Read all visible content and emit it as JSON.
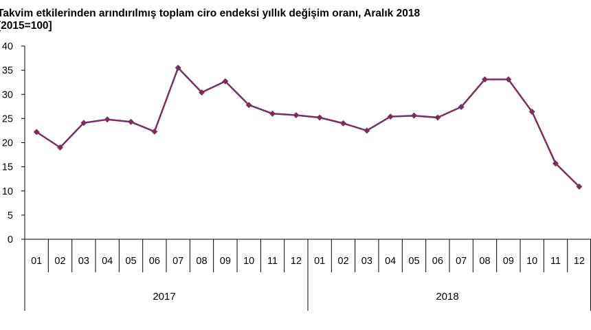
{
  "chart_data": {
    "type": "line",
    "title": "Takvim etkilerinden arındırılmış toplam ciro endeksi yıllık değişim oranı, Aralık 2018",
    "subtitle": "[2015=100]",
    "categories": [
      "01",
      "02",
      "03",
      "04",
      "05",
      "06",
      "07",
      "08",
      "09",
      "10",
      "11",
      "12",
      "01",
      "02",
      "03",
      "04",
      "05",
      "06",
      "07",
      "08",
      "09",
      "10",
      "11",
      "12"
    ],
    "years": [
      {
        "label": "2017",
        "start": 0,
        "end": 11
      },
      {
        "label": "2018",
        "start": 12,
        "end": 23
      }
    ],
    "series": [
      {
        "name": "Yıllık değişim oranı",
        "color": "#7b2d5c",
        "values": [
          22.2,
          19.0,
          24.1,
          24.8,
          24.3,
          22.3,
          35.5,
          30.4,
          32.7,
          27.8,
          26.0,
          25.7,
          25.2,
          24.0,
          22.5,
          25.4,
          25.6,
          25.2,
          27.4,
          33.1,
          33.1,
          26.4,
          15.7,
          10.9
        ]
      }
    ],
    "ylim": [
      0,
      40
    ],
    "yticks": [
      "0",
      "5",
      "10",
      "15",
      "20",
      "25",
      "30",
      "35",
      "40"
    ],
    "xlabel": "",
    "ylabel": ""
  }
}
